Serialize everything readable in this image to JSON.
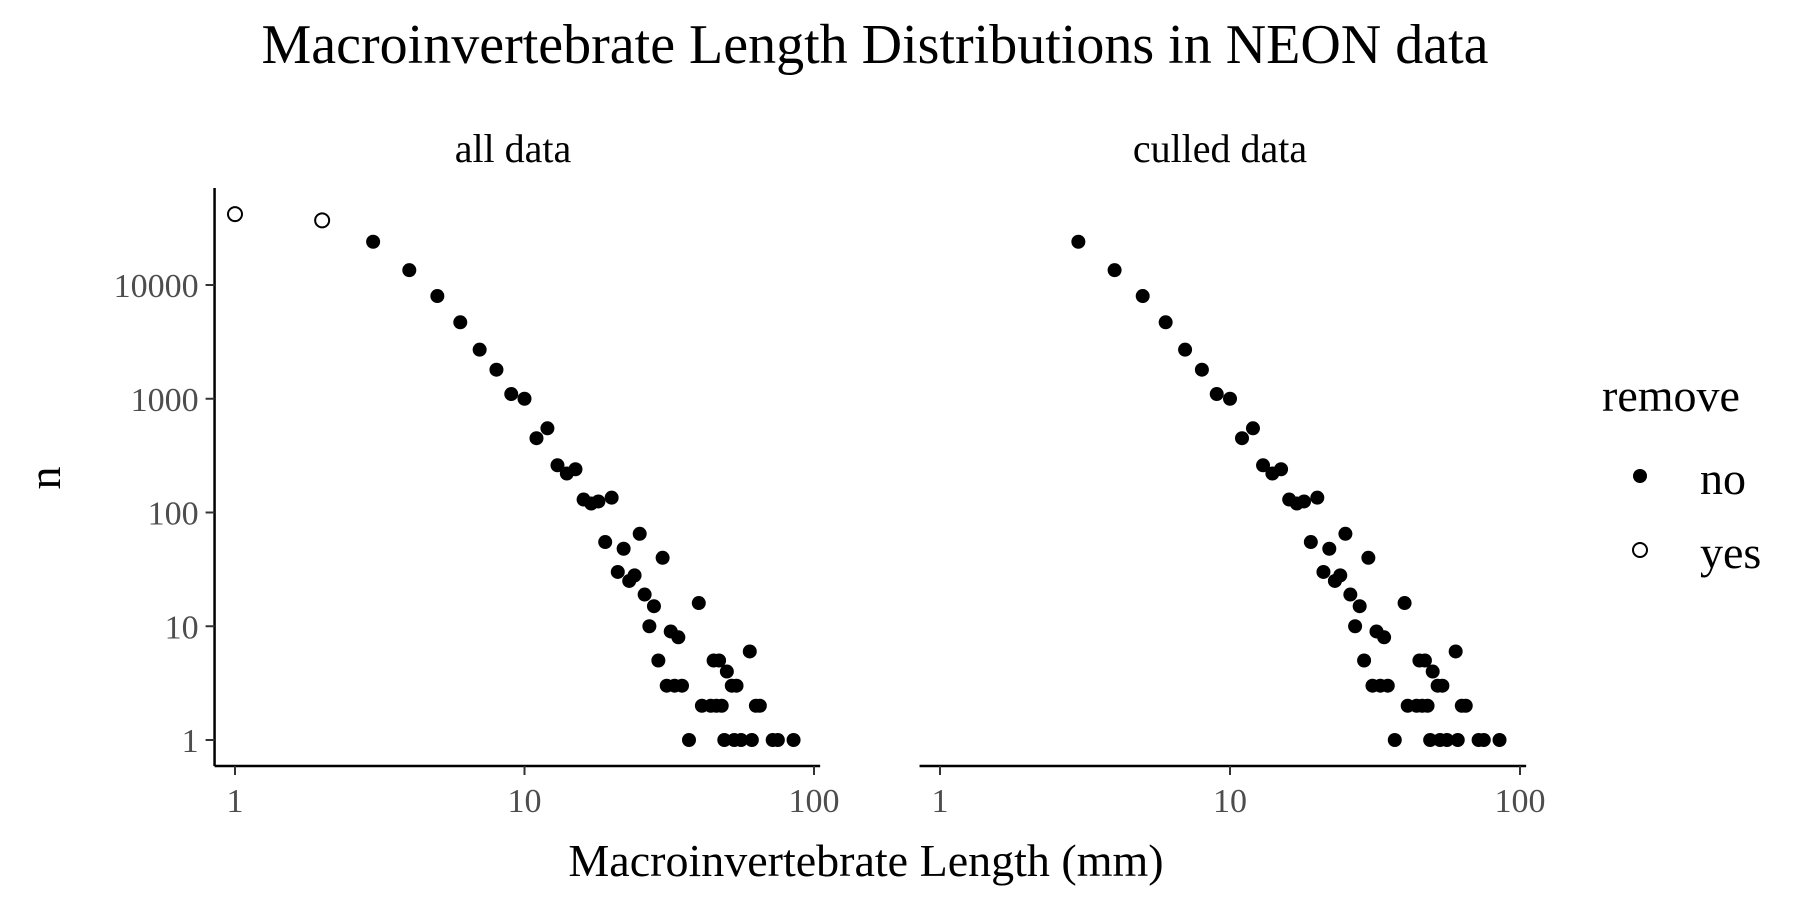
{
  "chart_data": {
    "type": "scatter",
    "title": "Macroinvertebrate Length Distributions in NEON data",
    "xlabel": "Macroinvertebrate Length (mm)",
    "ylabel": "n",
    "x_scale": "log10",
    "y_scale": "log10",
    "xlim": [
      0.85,
      105
    ],
    "ylim": [
      0.6,
      70000
    ],
    "x_ticks": [
      1,
      10,
      100
    ],
    "x_tick_labels": [
      "1",
      "10",
      "100"
    ],
    "y_ticks": [
      1,
      10,
      100,
      1000,
      10000
    ],
    "y_tick_labels": [
      "1",
      "10",
      "100",
      "1000",
      "10000"
    ],
    "grid": false,
    "legend": {
      "title": "remove",
      "position": "right",
      "entries": [
        {
          "label": "no",
          "marker": "filled-circle"
        },
        {
          "label": "yes",
          "marker": "open-circle"
        }
      ]
    },
    "panels": [
      {
        "label": "all data",
        "series": [
          {
            "name": "no",
            "marker": "filled-circle",
            "color": "#000000",
            "points": [
              [
                3,
                24000
              ],
              [
                4,
                13500
              ],
              [
                5,
                8000
              ],
              [
                6,
                4700
              ],
              [
                7,
                2700
              ],
              [
                8,
                1800
              ],
              [
                9,
                1100
              ],
              [
                10,
                1000
              ],
              [
                11,
                450
              ],
              [
                12,
                550
              ],
              [
                13,
                260
              ],
              [
                14,
                220
              ],
              [
                15,
                240
              ],
              [
                16,
                130
              ],
              [
                17,
                120
              ],
              [
                18,
                125
              ],
              [
                19,
                55
              ],
              [
                20,
                135
              ],
              [
                21,
                30
              ],
              [
                22,
                48
              ],
              [
                23,
                25
              ],
              [
                24,
                28
              ],
              [
                25,
                65
              ],
              [
                26,
                19
              ],
              [
                27,
                10
              ],
              [
                28,
                15
              ],
              [
                29,
                5
              ],
              [
                30,
                40
              ],
              [
                31,
                3
              ],
              [
                32,
                9
              ],
              [
                33,
                3
              ],
              [
                34,
                8
              ],
              [
                35,
                3
              ],
              [
                37,
                1
              ],
              [
                40,
                16
              ],
              [
                41,
                2
              ],
              [
                44,
                2
              ],
              [
                45,
                5
              ],
              [
                46,
                2
              ],
              [
                47,
                5
              ],
              [
                48,
                2
              ],
              [
                49,
                1
              ],
              [
                50,
                4
              ],
              [
                52,
                3
              ],
              [
                53,
                1
              ],
              [
                54,
                3
              ],
              [
                56,
                1
              ],
              [
                60,
                6
              ],
              [
                61,
                1
              ],
              [
                63,
                2
              ],
              [
                65,
                2
              ],
              [
                72,
                1
              ],
              [
                75,
                1
              ],
              [
                85,
                1
              ]
            ]
          },
          {
            "name": "yes",
            "marker": "open-circle",
            "color": "#000000",
            "points": [
              [
                1,
                42000
              ],
              [
                2,
                37000
              ]
            ]
          }
        ]
      },
      {
        "label": "culled data",
        "series": [
          {
            "name": "no",
            "marker": "filled-circle",
            "color": "#000000",
            "points": [
              [
                3,
                24000
              ],
              [
                4,
                13500
              ],
              [
                5,
                8000
              ],
              [
                6,
                4700
              ],
              [
                7,
                2700
              ],
              [
                8,
                1800
              ],
              [
                9,
                1100
              ],
              [
                10,
                1000
              ],
              [
                11,
                450
              ],
              [
                12,
                550
              ],
              [
                13,
                260
              ],
              [
                14,
                220
              ],
              [
                15,
                240
              ],
              [
                16,
                130
              ],
              [
                17,
                120
              ],
              [
                18,
                125
              ],
              [
                19,
                55
              ],
              [
                20,
                135
              ],
              [
                21,
                30
              ],
              [
                22,
                48
              ],
              [
                23,
                25
              ],
              [
                24,
                28
              ],
              [
                25,
                65
              ],
              [
                26,
                19
              ],
              [
                27,
                10
              ],
              [
                28,
                15
              ],
              [
                29,
                5
              ],
              [
                30,
                40
              ],
              [
                31,
                3
              ],
              [
                32,
                9
              ],
              [
                33,
                3
              ],
              [
                34,
                8
              ],
              [
                35,
                3
              ],
              [
                37,
                1
              ],
              [
                40,
                16
              ],
              [
                41,
                2
              ],
              [
                44,
                2
              ],
              [
                45,
                5
              ],
              [
                46,
                2
              ],
              [
                47,
                5
              ],
              [
                48,
                2
              ],
              [
                49,
                1
              ],
              [
                50,
                4
              ],
              [
                52,
                3
              ],
              [
                53,
                1
              ],
              [
                54,
                3
              ],
              [
                56,
                1
              ],
              [
                60,
                6
              ],
              [
                61,
                1
              ],
              [
                63,
                2
              ],
              [
                65,
                2
              ],
              [
                72,
                1
              ],
              [
                75,
                1
              ],
              [
                85,
                1
              ]
            ]
          }
        ]
      }
    ]
  }
}
